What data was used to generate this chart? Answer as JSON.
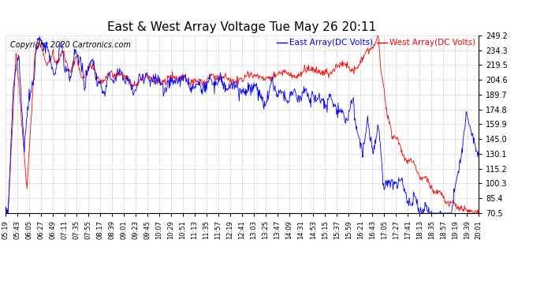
{
  "title": "East & West Array Voltage Tue May 26 20:11",
  "copyright": "Copyright 2020 Cartronics.com",
  "legend_east": "East Array(DC Volts)",
  "legend_west": "West Array(DC Volts)",
  "east_color": "blue",
  "west_color": "red",
  "ylim": [
    70.5,
    249.2
  ],
  "yticks": [
    70.5,
    85.4,
    100.3,
    115.2,
    130.1,
    145.0,
    159.9,
    174.8,
    189.7,
    204.6,
    219.5,
    234.3,
    249.2
  ],
  "xtick_labels": [
    "05:19",
    "05:43",
    "06:05",
    "06:27",
    "06:49",
    "07:11",
    "07:35",
    "07:55",
    "08:17",
    "08:39",
    "09:01",
    "09:23",
    "09:45",
    "10:07",
    "10:29",
    "10:51",
    "11:13",
    "11:35",
    "11:57",
    "12:19",
    "12:41",
    "13:03",
    "13:25",
    "13:47",
    "14:09",
    "14:31",
    "14:53",
    "15:15",
    "15:37",
    "15:59",
    "16:21",
    "16:43",
    "17:05",
    "17:27",
    "17:41",
    "18:13",
    "18:35",
    "18:57",
    "19:19",
    "19:39",
    "20:01"
  ],
  "background_color": "#ffffff",
  "grid_color": "#bbbbbb",
  "title_fontsize": 11,
  "label_fontsize": 7.5,
  "tick_fontsize": 7,
  "copyright_fontsize": 7
}
